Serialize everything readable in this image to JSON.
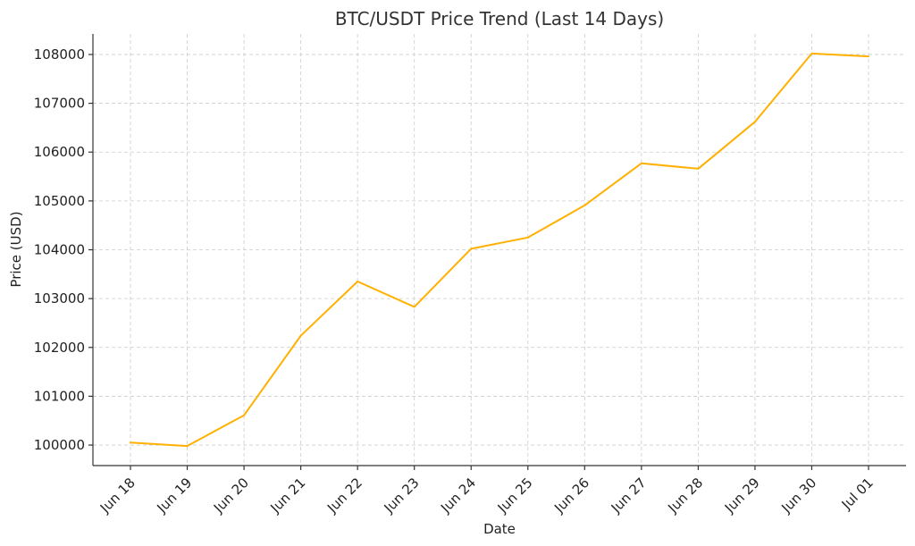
{
  "chart_data": {
    "type": "line",
    "title": "BTC/USDT Price Trend (Last 14 Days)",
    "xlabel": "Date",
    "ylabel": "Price (USD)",
    "categories": [
      "Jun 18",
      "Jun 19",
      "Jun 20",
      "Jun 21",
      "Jun 22",
      "Jun 23",
      "Jun 24",
      "Jun 25",
      "Jun 26",
      "Jun 27",
      "Jun 28",
      "Jun 29",
      "Jun 30",
      "Jul 01"
    ],
    "series": [
      {
        "values": [
          100050,
          99980,
          100610,
          102240,
          103350,
          102830,
          104020,
          104250,
          104910,
          105770,
          105660,
          106620,
          108020,
          107960
        ],
        "color": "#FFB000"
      }
    ],
    "yticks": [
      100000,
      101000,
      102000,
      103000,
      104000,
      105000,
      106000,
      107000,
      108000
    ],
    "ylim": [
      99580,
      108420
    ],
    "grid": true,
    "legend": "none"
  }
}
